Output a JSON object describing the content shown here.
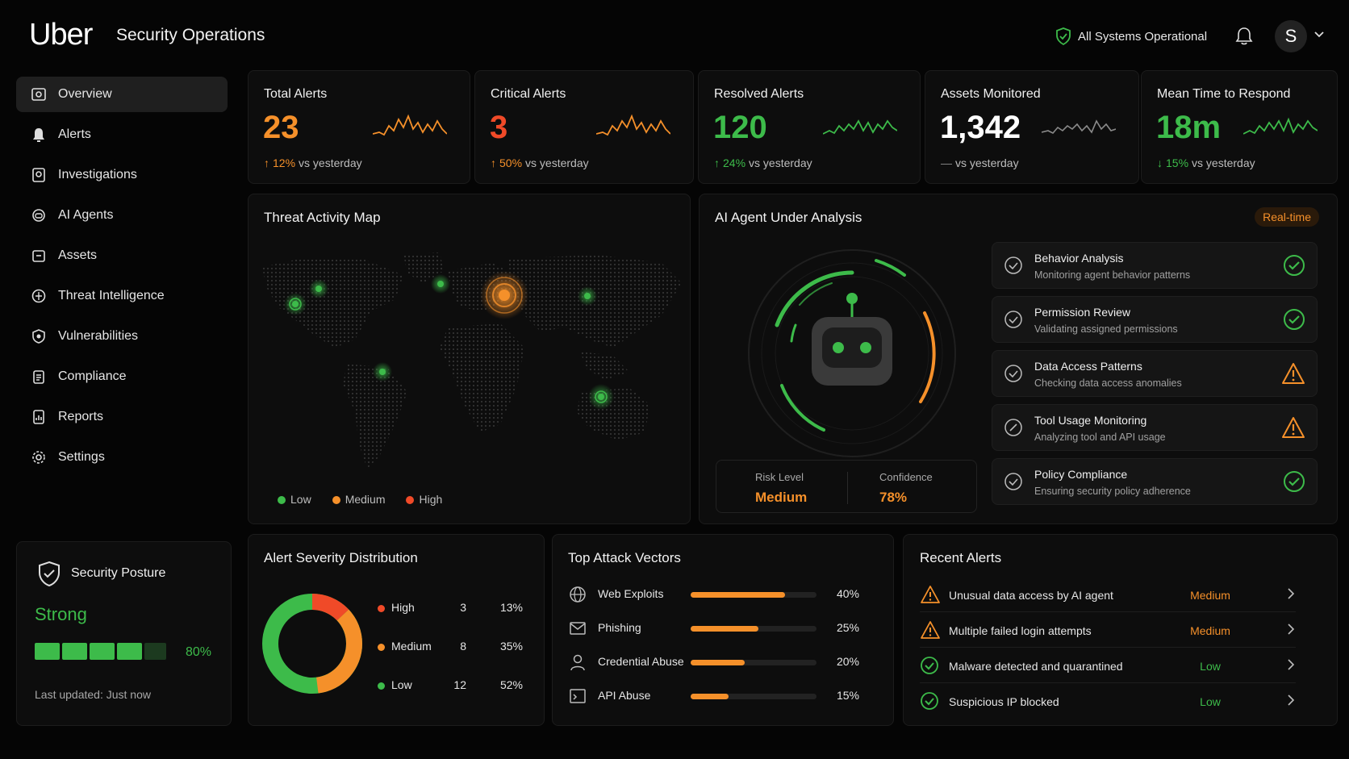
{
  "header": {
    "logo": "Uber",
    "title": "Security Operations",
    "system_status": "All Systems Operational",
    "avatar_initial": "S"
  },
  "sidebar": {
    "items": [
      {
        "label": "Overview",
        "icon": "dashboard-icon",
        "active": true
      },
      {
        "label": "Alerts",
        "icon": "bell-icon"
      },
      {
        "label": "Investigations",
        "icon": "investigation-icon"
      },
      {
        "label": "AI Agents",
        "icon": "robot-icon"
      },
      {
        "label": "Assets",
        "icon": "assets-icon"
      },
      {
        "label": "Threat Intelligence",
        "icon": "globe-shield-icon"
      },
      {
        "label": "Vulnerabilities",
        "icon": "shield-icon"
      },
      {
        "label": "Compliance",
        "icon": "clipboard-icon"
      },
      {
        "label": "Reports",
        "icon": "report-icon"
      },
      {
        "label": "Settings",
        "icon": "gear-icon"
      }
    ]
  },
  "stats": [
    {
      "title": "Total Alerts",
      "value": "23",
      "arrow": "↑",
      "delta": "12%",
      "suffix": "vs yesterday",
      "color": "#f5902a"
    },
    {
      "title": "Critical Alerts",
      "value": "3",
      "arrow": "↑",
      "delta": "50%",
      "suffix": "vs yesterday",
      "color": "#f04a28"
    },
    {
      "title": "Resolved Alerts",
      "value": "120",
      "arrow": "↑",
      "delta": "24%",
      "suffix": "vs yesterday",
      "color": "#3dbb4a"
    },
    {
      "title": "Assets Monitored",
      "value": "1,342",
      "arrow": "—",
      "delta": "",
      "suffix": "vs yesterday",
      "color": "#ffffff"
    },
    {
      "title": "Mean Time to Respond",
      "value": "18m",
      "arrow": "↓",
      "delta": "15%",
      "suffix": "vs yesterday",
      "color": "#3dbb4a"
    }
  ],
  "threat_map": {
    "title": "Threat Activity Map",
    "legend": [
      {
        "label": "Low",
        "color": "#3dbb4a"
      },
      {
        "label": "Medium",
        "color": "#f5902a"
      },
      {
        "label": "High",
        "color": "#f04a28"
      }
    ]
  },
  "agent": {
    "title": "AI Agent Under Analysis",
    "badge": "Real-time",
    "risk_label": "Risk Level",
    "risk_value": "Medium",
    "confidence_label": "Confidence",
    "confidence_value": "78%",
    "checks": [
      {
        "title": "Behavior Analysis",
        "sub": "Monitoring agent behavior patterns",
        "status": "ok"
      },
      {
        "title": "Permission Review",
        "sub": "Validating assigned permissions",
        "status": "ok"
      },
      {
        "title": "Data Access Patterns",
        "sub": "Checking data access anomalies",
        "status": "warn"
      },
      {
        "title": "Tool Usage Monitoring",
        "sub": "Analyzing tool and API usage",
        "status": "warn"
      },
      {
        "title": "Policy Compliance",
        "sub": "Ensuring security policy adherence",
        "status": "ok"
      }
    ]
  },
  "severity": {
    "title": "Alert Severity Distribution",
    "rows": [
      {
        "label": "High",
        "count": "3",
        "pct": "13%",
        "color": "#f04a28"
      },
      {
        "label": "Medium",
        "count": "8",
        "pct": "35%",
        "color": "#f5902a"
      },
      {
        "label": "Low",
        "count": "12",
        "pct": "52%",
        "color": "#3dbb4a"
      }
    ]
  },
  "attack_vectors": {
    "title": "Top Attack Vectors",
    "rows": [
      {
        "label": "Web Exploits",
        "pct": "40%",
        "value": 0.75,
        "icon": "globe-icon"
      },
      {
        "label": "Phishing",
        "pct": "25%",
        "value": 0.54,
        "icon": "mail-icon"
      },
      {
        "label": "Credential Abuse",
        "pct": "20%",
        "value": 0.43,
        "icon": "user-icon"
      },
      {
        "label": "API Abuse",
        "pct": "15%",
        "value": 0.3,
        "icon": "terminal-icon"
      }
    ]
  },
  "recent_alerts": {
    "title": "Recent Alerts",
    "rows": [
      {
        "label": "Unusual data access by AI agent",
        "severity": "Medium",
        "type": "warn"
      },
      {
        "label": "Multiple failed login attempts",
        "severity": "Medium",
        "type": "warn"
      },
      {
        "label": "Malware detected and quarantined",
        "severity": "Low",
        "type": "ok"
      },
      {
        "label": "Suspicious IP blocked",
        "severity": "Low",
        "type": "ok"
      }
    ]
  },
  "posture": {
    "title": "Security Posture",
    "status": "Strong",
    "pct": "80%",
    "level": 0.8,
    "updated": "Last updated: Just now"
  }
}
